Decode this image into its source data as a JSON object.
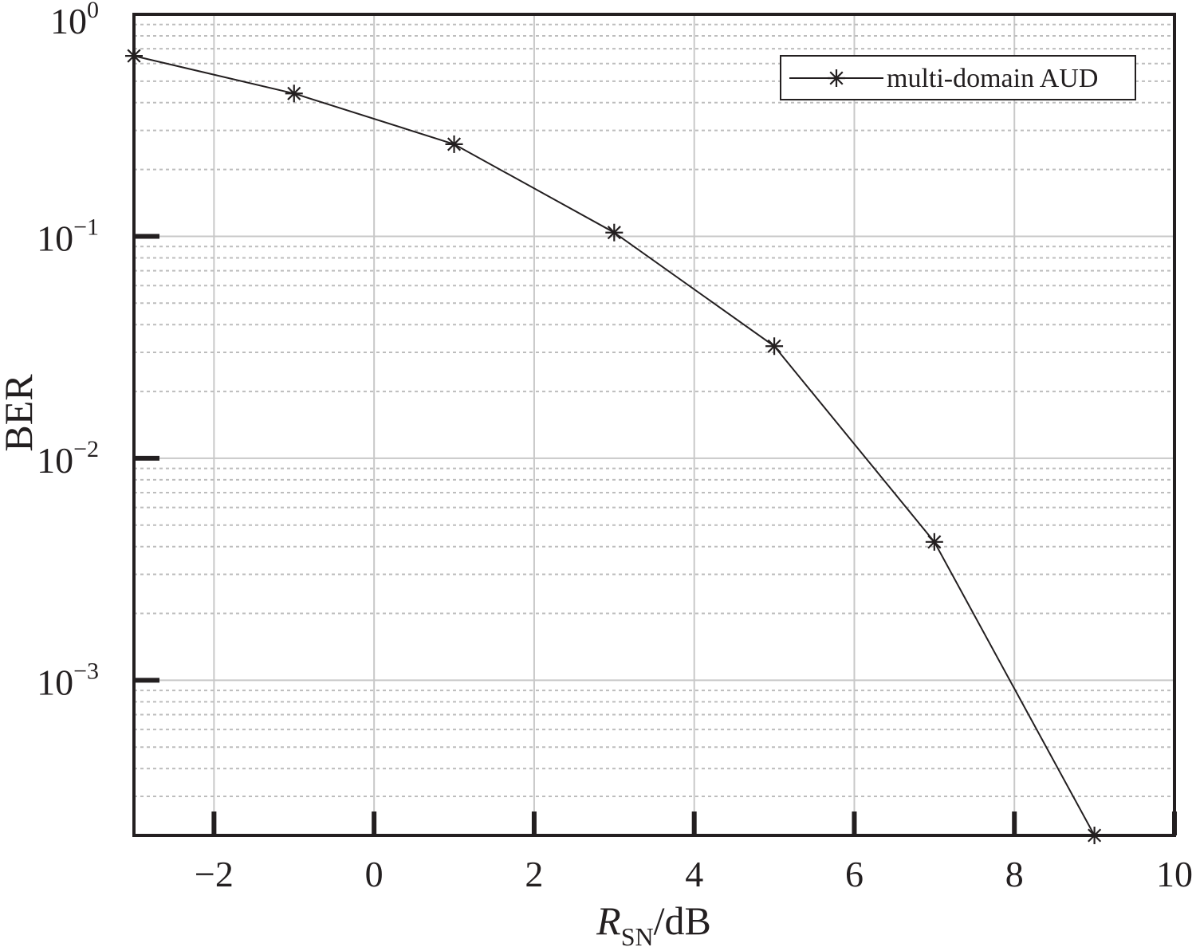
{
  "chart_data": {
    "type": "line",
    "title": "",
    "xlabel": {
      "main": "R",
      "sub": "SN",
      "unit": "/dB"
    },
    "ylabel": "BER",
    "x_scale": "linear",
    "y_scale": "log",
    "xlim": [
      -3,
      10
    ],
    "ylim": [
      0.0002,
      1
    ],
    "x_ticks": [
      -2,
      0,
      2,
      4,
      6,
      8,
      10
    ],
    "x_tick_labels": [
      "−2",
      "0",
      "2",
      "4",
      "6",
      "8",
      "10"
    ],
    "y_ticks": [
      {
        "value": 1,
        "base": "10",
        "exp": "0"
      },
      {
        "value": 0.1,
        "base": "10",
        "exp": "−1"
      },
      {
        "value": 0.01,
        "base": "10",
        "exp": "−2"
      },
      {
        "value": 0.001,
        "base": "10",
        "exp": "−3"
      }
    ],
    "grid": true,
    "legend_position": "top-right",
    "series": [
      {
        "name": "multi-domain AUD",
        "marker": "asterisk",
        "color": "#231f20",
        "x": [
          -3,
          -1,
          1,
          3,
          5,
          7,
          9
        ],
        "y": [
          0.65,
          0.44,
          0.26,
          0.104,
          0.032,
          0.0042,
          0.0002
        ]
      }
    ]
  }
}
